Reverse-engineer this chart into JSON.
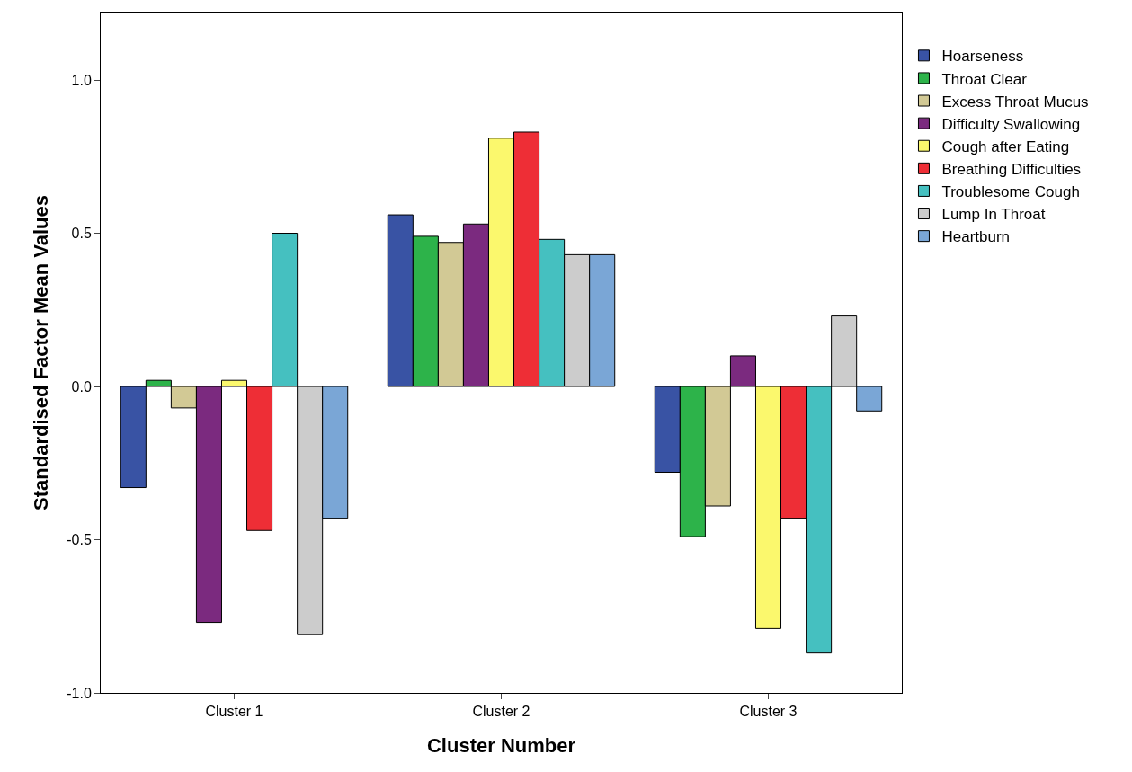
{
  "chart_data": {
    "type": "bar",
    "xlabel": "Cluster Number",
    "ylabel": "Standardised Factor Mean Values",
    "categories": [
      "Cluster 1",
      "Cluster 2",
      "Cluster 3"
    ],
    "series": [
      {
        "name": "Hoarseness",
        "color": "#3953a4",
        "values": [
          -0.33,
          0.56,
          -0.28
        ]
      },
      {
        "name": "Throat Clear",
        "color": "#2db34a",
        "values": [
          0.02,
          0.49,
          -0.49
        ]
      },
      {
        "name": "Excess Throat Mucus",
        "color": "#d2c995",
        "values": [
          -0.07,
          0.47,
          -0.39
        ]
      },
      {
        "name": "Difficulty Swallowing",
        "color": "#7b2a7f",
        "values": [
          -0.77,
          0.53,
          0.1
        ]
      },
      {
        "name": "Cough after Eating",
        "color": "#fbf86d",
        "values": [
          0.02,
          0.81,
          -0.79
        ]
      },
      {
        "name": "Breathing Difficulties",
        "color": "#ee2e36",
        "values": [
          -0.47,
          0.83,
          -0.43
        ]
      },
      {
        "name": "Troublesome Cough",
        "color": "#45c0c0",
        "values": [
          0.5,
          0.48,
          -0.87
        ]
      },
      {
        "name": "Lump In Throat",
        "color": "#cccccc",
        "values": [
          -0.81,
          0.43,
          0.23
        ]
      },
      {
        "name": "Heartburn",
        "color": "#7aa6d6",
        "values": [
          -0.43,
          0.43,
          -0.08
        ]
      }
    ],
    "ylim": [
      -1.0,
      1.22
    ],
    "yticks": [
      {
        "value": -1,
        "label": "-1.0"
      },
      -0.5,
      {
        "value": 0,
        "label": "0.0"
      },
      0.5,
      {
        "value": 1,
        "label": "1.0"
      }
    ],
    "grid": false,
    "legend": "top right"
  }
}
